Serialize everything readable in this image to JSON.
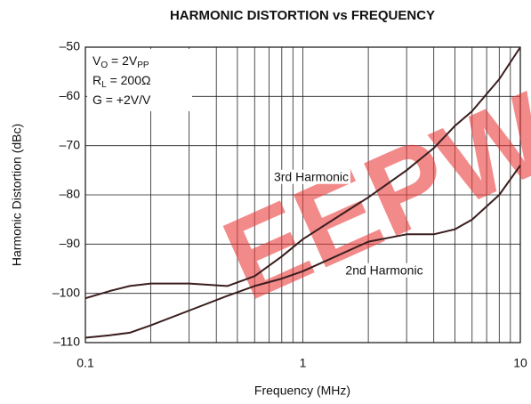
{
  "chart_data": {
    "type": "line",
    "title": "HARMONIC DISTORTION vs FREQUENCY",
    "xlabel": "Frequency (MHz)",
    "ylabel": "Harmonic Distortion (dBc)",
    "xscale": "log",
    "xlim": [
      0.1,
      10
    ],
    "xticks": [
      0.1,
      1,
      10
    ],
    "x_minor_ticks": [
      0.2,
      0.3,
      0.4,
      0.5,
      0.6,
      0.7,
      0.8,
      0.9,
      2,
      3,
      4,
      5,
      6,
      7,
      8,
      9
    ],
    "ylim": [
      -110,
      -50
    ],
    "yticks": [
      {
        "value": -110,
        "label": "–110"
      },
      {
        "value": -100,
        "label": "–100"
      },
      {
        "value": -90,
        "label": "–90"
      },
      {
        "value": -80,
        "label": "–80"
      },
      {
        "value": -70,
        "label": "–70"
      },
      {
        "value": -60,
        "label": "–60"
      },
      {
        "value": -50,
        "label": "–50"
      }
    ],
    "grid": true,
    "x": [
      0.1,
      0.13,
      0.16,
      0.2,
      0.3,
      0.45,
      0.6,
      0.8,
      1,
      1.5,
      2,
      3,
      4,
      5,
      6,
      8,
      10
    ],
    "series": [
      {
        "name": "3rd Harmonic",
        "color": "#3a1d1d",
        "values": [
          -101,
          -99.5,
          -98.5,
          -98,
          -98,
          -98.5,
          -96.5,
          -92.5,
          -89,
          -84,
          -80.5,
          -75,
          -70.5,
          -66,
          -63,
          -56.5,
          -50
        ]
      },
      {
        "name": "2nd Harmonic",
        "color": "#3a1d1d",
        "values": [
          -109,
          -108.5,
          -108,
          -106.5,
          -103.5,
          -100.5,
          -98.5,
          -97,
          -95.5,
          -92,
          -89.5,
          -88,
          -88,
          -87,
          -85,
          -80,
          -74
        ]
      }
    ],
    "conditions": [
      [
        {
          "t": "V"
        },
        {
          "sub": "O"
        },
        {
          "t": " = 2V"
        },
        {
          "sub": "PP"
        }
      ],
      [
        {
          "t": "R"
        },
        {
          "sub": "L"
        },
        {
          "t": " = 200Ω"
        }
      ],
      [
        {
          "t": "G = +2V/V"
        }
      ]
    ],
    "watermark": "EEPW"
  }
}
